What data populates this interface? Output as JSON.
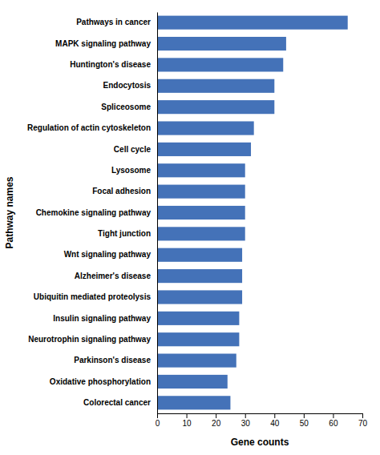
{
  "chart_data": {
    "type": "bar",
    "orientation": "horizontal",
    "categories": [
      "Colorectal cancer",
      "Oxidative phosphorylation",
      "Parkinson's disease",
      "Neurotrophin signaling pathway",
      "Insulin signaling pathway",
      "Ubiquitin mediated proteolysis",
      "Alzheimer's disease",
      "Wnt signaling pathway",
      "Tight junction",
      "Chemokine signaling pathway",
      "Focal adhesion",
      "Lysosome",
      "Cell cycle",
      "Regulation of actin cytoskeleton",
      "Spliceosome",
      "Endocytosis",
      "Huntington's disease",
      "MAPK signaling pathway",
      "Pathways in cancer"
    ],
    "values": [
      25,
      24,
      27,
      28,
      28,
      29,
      29,
      29,
      30,
      30,
      30,
      30,
      32,
      33,
      40,
      40,
      43,
      44,
      65
    ],
    "color": "#4472b8",
    "xlabel": "Gene counts",
    "ylabel": "Pathway names",
    "xlim": [
      0,
      70
    ],
    "xticks": [
      0,
      10,
      20,
      30,
      40,
      50,
      60,
      70
    ],
    "grid": false
  }
}
